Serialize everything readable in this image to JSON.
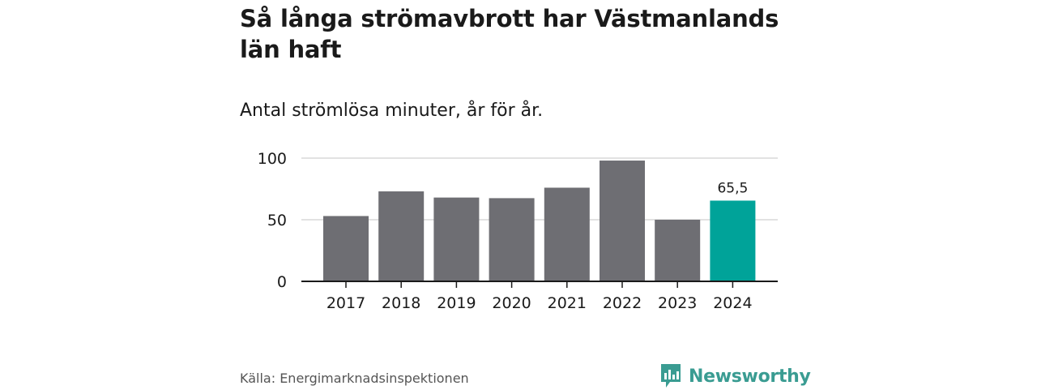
{
  "header": {
    "title": "Så långa strömavbrott har Västmanlands län haft",
    "subtitle": "Antal strömlösa minuter, år för år."
  },
  "footer": {
    "source": "Källa: Energimarknadsinspektionen",
    "brand": "Newsworthy",
    "brand_icon": "bar-chart-speech-bubble-icon"
  },
  "colors": {
    "bar": "#6e6e73",
    "highlight": "#00a399",
    "grid": "#d9d9d9",
    "axis": "#1a1a1a",
    "brand": "#3a9c92"
  },
  "chart_data": {
    "type": "bar",
    "title": "Så långa strömavbrott har Västmanlands län haft",
    "subtitle": "Antal strömlösa minuter, år för år.",
    "categories": [
      "2017",
      "2018",
      "2019",
      "2020",
      "2021",
      "2022",
      "2023",
      "2024"
    ],
    "values": [
      53,
      73,
      68,
      67.5,
      76,
      98,
      50,
      65.5
    ],
    "highlight_index": 7,
    "data_labels": {
      "7": "65,5"
    },
    "yticks": [
      0,
      50,
      100
    ],
    "ylim": [
      0,
      100
    ],
    "xlabel": "",
    "ylabel": "",
    "grid": true
  }
}
